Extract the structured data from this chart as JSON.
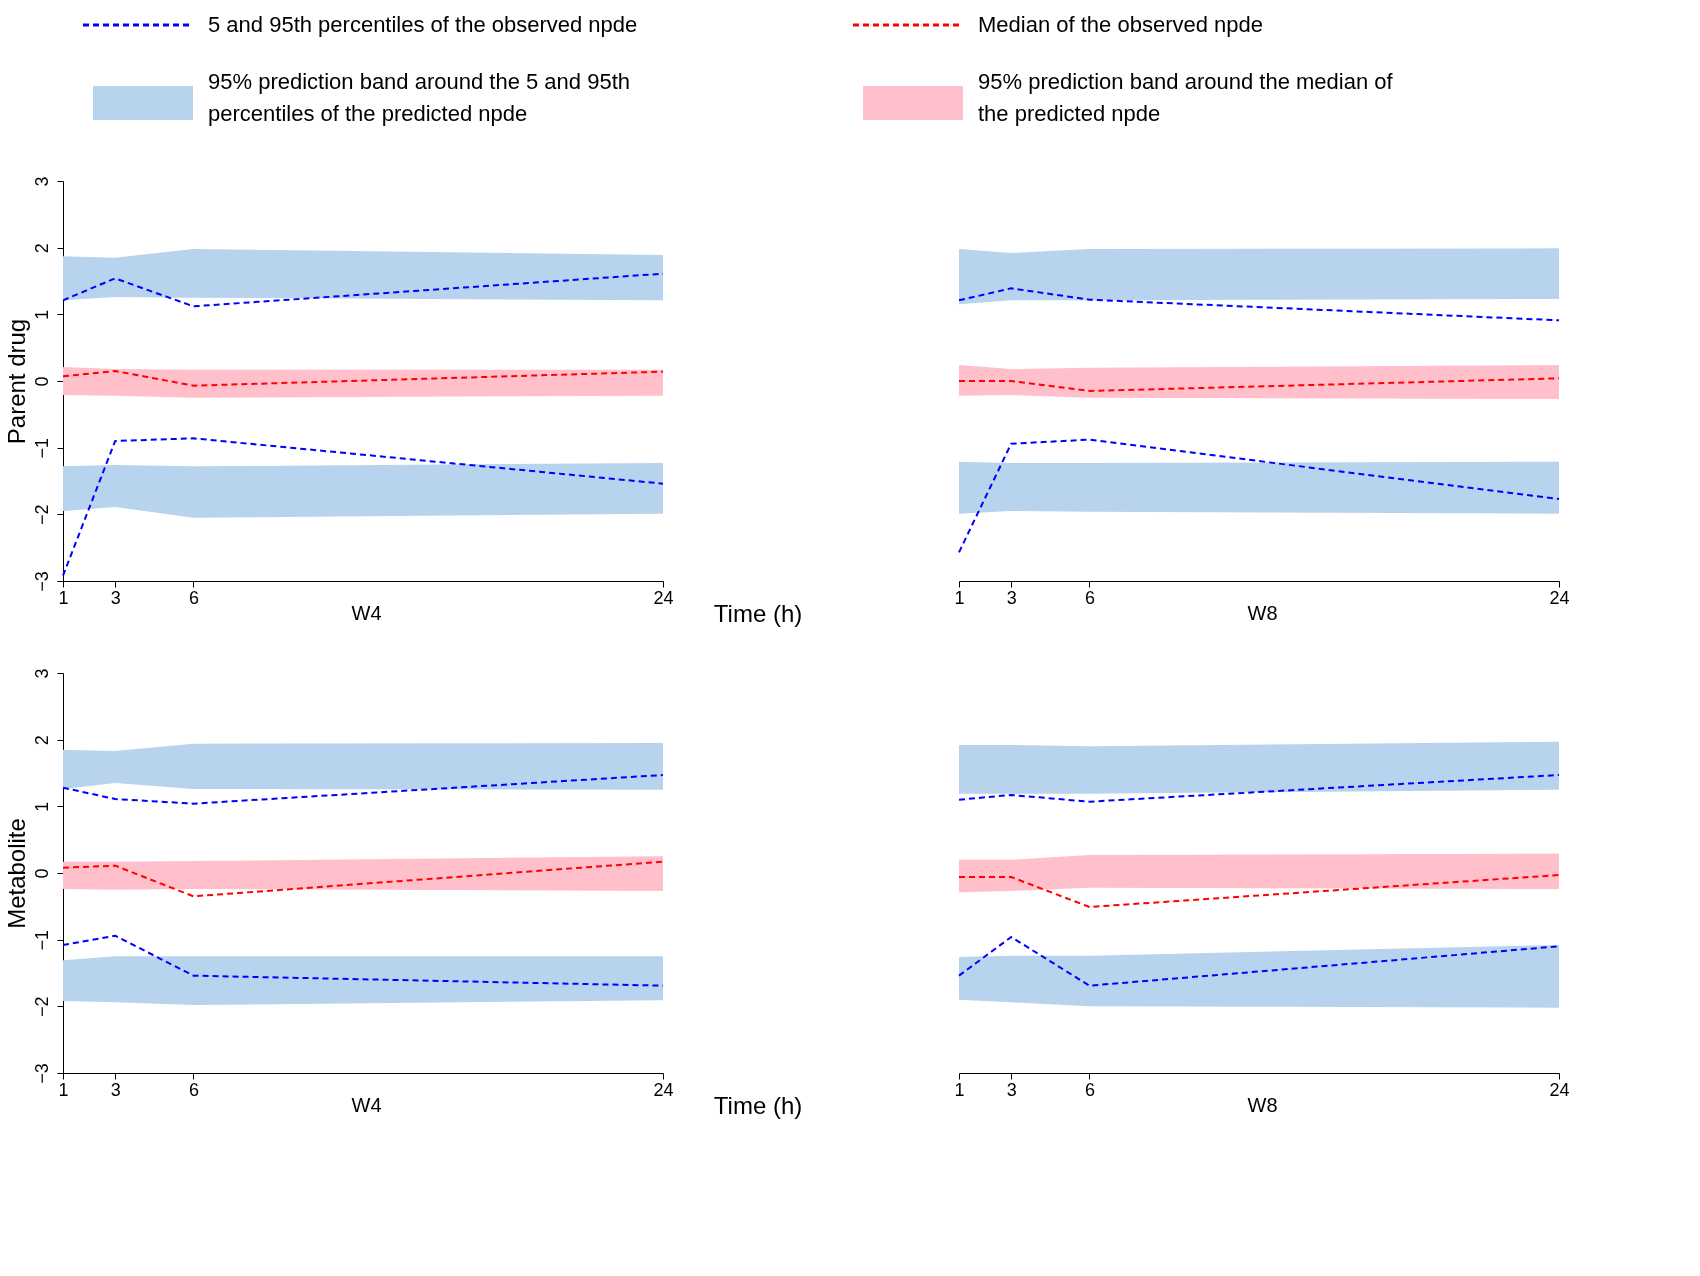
{
  "chart_data": [
    {
      "type": "line",
      "x": [
        1,
        3,
        6,
        24
      ],
      "xlim": [
        1,
        24
      ],
      "xticks": [
        1,
        3,
        6,
        24
      ],
      "ylim": [
        -3,
        3
      ],
      "yticks": [
        -3,
        -2,
        -1,
        0,
        1,
        2,
        3
      ],
      "xlabel": "W4",
      "ylabel": "Parent drug",
      "legend": "top",
      "annotations": [
        "Time (h)"
      ],
      "series": [
        {
          "type": "area",
          "name": "95% prediction band around the 5 and 95th percentiles of the predicted npde",
          "color": "#b8d3ed",
          "values": [
            null,
            null,
            null,
            null
          ],
          "lower": [
            1.21,
            1.26,
            1.25,
            1.21
          ],
          "upper": [
            1.87,
            1.85,
            1.98,
            1.89
          ]
        },
        {
          "type": "area",
          "color": "#b8d3ed",
          "values": [
            null,
            null,
            null,
            null
          ],
          "lower": [
            -1.95,
            -1.89,
            -2.05,
            -1.99
          ],
          "upper": [
            -1.28,
            -1.26,
            -1.28,
            -1.23
          ]
        },
        {
          "type": "area",
          "name": "95% prediction band around the median of the predicted npde",
          "color": "#ffc0cb",
          "values": [
            null,
            null,
            null,
            null
          ],
          "lower": [
            -0.21,
            -0.22,
            -0.25,
            -0.22
          ],
          "upper": [
            0.21,
            0.18,
            0.17,
            0.17
          ]
        },
        {
          "type": "line",
          "name": "5 and 95th percentiles of the observed npde",
          "color": "#0000ff",
          "line_style": "dashed",
          "values": [
            1.21,
            1.54,
            1.12,
            1.61
          ]
        },
        {
          "type": "line",
          "color": "#0000ff",
          "line_style": "dashed",
          "values": [
            -2.92,
            -0.9,
            -0.86,
            -1.54
          ]
        },
        {
          "type": "line",
          "name": "Median of the observed npde",
          "color": "#ff0000",
          "line_style": "dashed",
          "values": [
            0.07,
            0.15,
            -0.07,
            0.14
          ]
        }
      ]
    },
    {
      "type": "line",
      "x": [
        1,
        3,
        6,
        24
      ],
      "xlim": [
        1,
        24
      ],
      "xticks": [
        1,
        3,
        6,
        24
      ],
      "ylim": [
        -3,
        3
      ],
      "yticks": [
        -3,
        -2,
        -1,
        0,
        1,
        2,
        3
      ],
      "xlabel": "W8",
      "tick_labels": "x",
      "series": [
        {
          "type": "area",
          "color": "#b8d3ed",
          "values": [
            null,
            null,
            null,
            null
          ],
          "lower": [
            1.15,
            1.21,
            1.21,
            1.23
          ],
          "upper": [
            1.98,
            1.92,
            1.98,
            1.99
          ]
        },
        {
          "type": "area",
          "color": "#b8d3ed",
          "values": [
            null,
            null,
            null,
            null
          ],
          "lower": [
            -1.99,
            -1.95,
            -1.96,
            -1.99
          ],
          "upper": [
            -1.21,
            -1.23,
            -1.23,
            -1.21
          ]
        },
        {
          "type": "area",
          "color": "#ffc0cb",
          "values": [
            null,
            null,
            null,
            null
          ],
          "lower": [
            -0.22,
            -0.21,
            -0.25,
            -0.27
          ],
          "upper": [
            0.24,
            0.18,
            0.2,
            0.24
          ]
        },
        {
          "type": "line",
          "color": "#0000ff",
          "line_style": "dashed",
          "values": [
            1.21,
            1.39,
            1.22,
            0.91
          ]
        },
        {
          "type": "line",
          "color": "#0000ff",
          "line_style": "dashed",
          "values": [
            -2.57,
            -0.94,
            -0.88,
            -1.77
          ]
        },
        {
          "type": "line",
          "color": "#ff0000",
          "line_style": "dashed",
          "values": [
            0,
            0,
            -0.15,
            0.04
          ]
        }
      ]
    },
    {
      "type": "line",
      "x": [
        1,
        3,
        6,
        24
      ],
      "xlim": [
        1,
        24
      ],
      "xticks": [
        1,
        3,
        6,
        24
      ],
      "ylim": [
        -3,
        3
      ],
      "yticks": [
        -3,
        -2,
        -1,
        0,
        1,
        2,
        3
      ],
      "xlabel": "W4",
      "ylabel": "Metabolite",
      "annotations": [
        "Time (h)"
      ],
      "series": [
        {
          "type": "area",
          "color": "#b8d3ed",
          "values": [
            null,
            null,
            null,
            null
          ],
          "lower": [
            1.26,
            1.35,
            1.26,
            1.25
          ],
          "upper": [
            1.85,
            1.83,
            1.94,
            1.95
          ]
        },
        {
          "type": "area",
          "color": "#b8d3ed",
          "values": [
            null,
            null,
            null,
            null
          ],
          "lower": [
            -1.92,
            -1.94,
            -1.98,
            -1.91
          ],
          "upper": [
            -1.31,
            -1.25,
            -1.25,
            -1.25
          ]
        },
        {
          "type": "area",
          "color": "#ffc0cb",
          "values": [
            null,
            null,
            null,
            null
          ],
          "lower": [
            -0.24,
            -0.25,
            -0.24,
            -0.27
          ],
          "upper": [
            0.17,
            0.17,
            0.18,
            0.25
          ]
        },
        {
          "type": "line",
          "color": "#0000ff",
          "line_style": "dashed",
          "values": [
            1.28,
            1.11,
            1.04,
            1.47
          ]
        },
        {
          "type": "line",
          "color": "#0000ff",
          "line_style": "dashed",
          "values": [
            -1.08,
            -0.94,
            -1.54,
            -1.69
          ]
        },
        {
          "type": "line",
          "color": "#ff0000",
          "line_style": "dashed",
          "values": [
            0.08,
            0.11,
            -0.35,
            0.17
          ]
        }
      ]
    },
    {
      "type": "line",
      "x": [
        1,
        3,
        6,
        24
      ],
      "xlim": [
        1,
        24
      ],
      "xticks": [
        1,
        3,
        6,
        24
      ],
      "ylim": [
        -3,
        3
      ],
      "yticks": [
        -3,
        -2,
        -1,
        0,
        1,
        2,
        3
      ],
      "xlabel": "W8",
      "tick_labels": "x",
      "series": [
        {
          "type": "area",
          "color": "#b8d3ed",
          "values": [
            null,
            null,
            null,
            null
          ],
          "lower": [
            1.19,
            1.19,
            1.19,
            1.25
          ],
          "upper": [
            1.92,
            1.92,
            1.9,
            1.97
          ]
        },
        {
          "type": "area",
          "color": "#b8d3ed",
          "values": [
            null,
            null,
            null,
            null
          ],
          "lower": [
            -1.9,
            -1.94,
            -2.0,
            -2.02
          ],
          "upper": [
            -1.26,
            -1.24,
            -1.24,
            -1.08
          ]
        },
        {
          "type": "area",
          "color": "#ffc0cb",
          "values": [
            null,
            null,
            null,
            null
          ],
          "lower": [
            -0.29,
            -0.27,
            -0.22,
            -0.24
          ],
          "upper": [
            0.2,
            0.2,
            0.27,
            0.29
          ]
        },
        {
          "type": "line",
          "color": "#0000ff",
          "line_style": "dashed",
          "values": [
            1.1,
            1.17,
            1.07,
            1.47
          ]
        },
        {
          "type": "line",
          "color": "#0000ff",
          "line_style": "dashed",
          "values": [
            -1.54,
            -0.96,
            -1.69,
            -1.1
          ]
        },
        {
          "type": "line",
          "color": "#ff0000",
          "line_style": "dashed",
          "values": [
            -0.06,
            -0.06,
            -0.51,
            -0.03
          ]
        }
      ]
    }
  ]
}
